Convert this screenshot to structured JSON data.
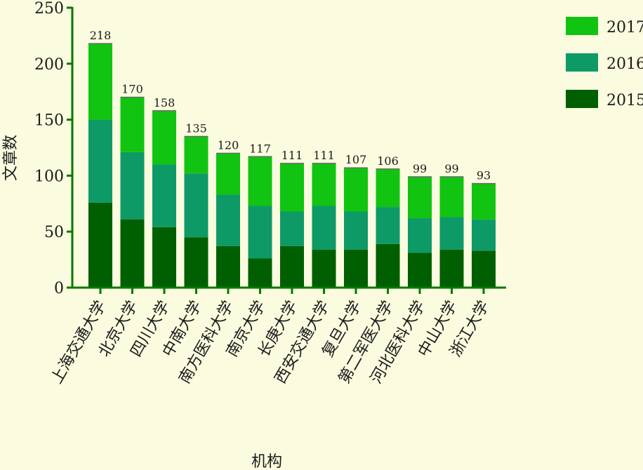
{
  "chart_data": {
    "type": "bar",
    "stacked": true,
    "xlabel": "机构",
    "ylabel": "文章数",
    "ylim": [
      0,
      250
    ],
    "yticks": [
      0,
      50,
      100,
      150,
      200,
      250
    ],
    "grid": false,
    "legend_position": "right",
    "categories": [
      "上海交通大学",
      "北京大学",
      "四川大学",
      "中南大学",
      "南方医科大学",
      "南京大学",
      "长庚大学",
      "西安交通大学",
      "复旦大学",
      "第二军医大学",
      "河北医科大学",
      "中山大学",
      "浙江大学"
    ],
    "series": [
      {
        "name": "2015",
        "color": "#005f00",
        "values": [
          76,
          61,
          54,
          45,
          37,
          26,
          37,
          34,
          34,
          39,
          31,
          34,
          33
        ]
      },
      {
        "name": "2016",
        "color": "#0e9a66",
        "values": [
          74,
          60,
          56,
          57,
          46,
          47,
          31,
          39,
          34,
          33,
          31,
          29,
          28
        ]
      },
      {
        "name": "2017",
        "color": "#11c411",
        "values": [
          68,
          49,
          48,
          33,
          37,
          44,
          43,
          38,
          39,
          34,
          37,
          36,
          32
        ]
      }
    ],
    "totals": [
      218,
      170,
      158,
      135,
      120,
      117,
      111,
      111,
      107,
      106,
      99,
      99,
      93
    ]
  }
}
